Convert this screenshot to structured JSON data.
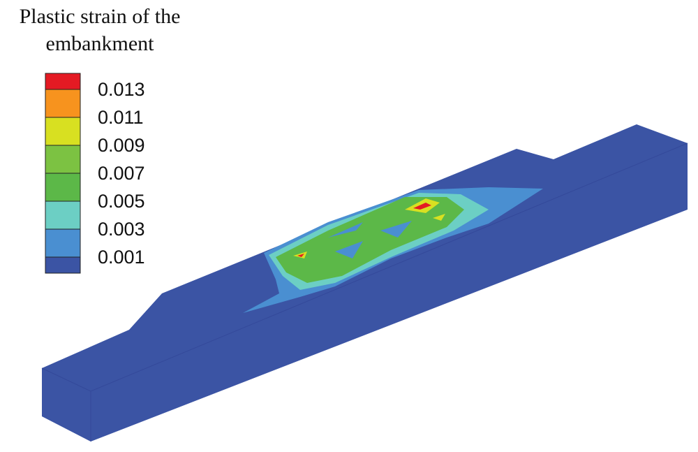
{
  "title_lines": [
    "Plastic strain of the",
    "embankment"
  ],
  "legend": {
    "colors": [
      "#e41a23",
      "#f7931e",
      "#d8e021",
      "#7cc242",
      "#5cb848",
      "#6ccfc4",
      "#4a8fd1",
      "#3b54a4"
    ],
    "labels": [
      "0.013",
      "0.011",
      "0.009",
      "0.007",
      "0.005",
      "0.003",
      "0.001"
    ]
  }
}
